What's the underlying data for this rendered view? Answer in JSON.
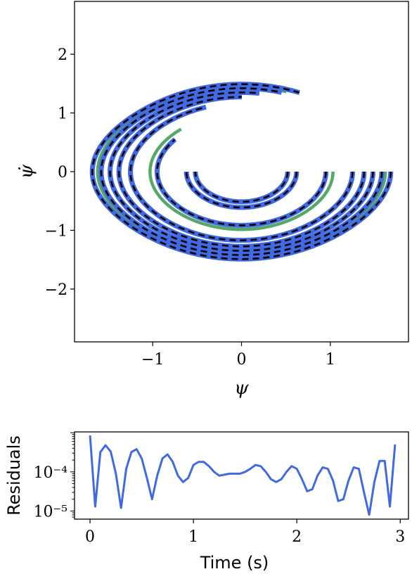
{
  "chart_data": [
    {
      "type": "line",
      "title": "",
      "xlabel": "ψ",
      "ylabel": "ψ̇",
      "xlim": [
        -1.88,
        1.88
      ],
      "ylim": [
        -2.9,
        2.9
      ],
      "xticks": [
        -1,
        0,
        1
      ],
      "yticks": [
        -2,
        -1,
        0,
        1,
        2
      ],
      "grid": false,
      "legend": "none",
      "colors": {
        "learned": "#4169e1",
        "reference": "#000000",
        "training": "#55a868"
      },
      "trajectories": [
        {
          "start_angle": 0.52,
          "end_psi": -0.55
        },
        {
          "start_angle": 0.62,
          "end_psi": -0.62
        },
        {
          "start_angle": 0.95,
          "end_psi": -0.75
        },
        {
          "start_angle": 1.25,
          "end_psi": -0.4
        },
        {
          "start_angle": 1.38,
          "end_psi": 0.0
        },
        {
          "start_angle": 1.48,
          "end_psi": 0.2
        },
        {
          "start_angle": 1.58,
          "end_psi": 0.45
        },
        {
          "start_angle": 1.68,
          "end_psi": 0.65
        }
      ],
      "training_trajectories": [
        {
          "start_angle": 1.03,
          "end_psi": -0.68
        },
        {
          "start_angle": 1.26,
          "end_psi": -0.45
        },
        {
          "start_angle": 1.62,
          "end_psi": 0.5
        }
      ]
    },
    {
      "type": "line",
      "title": "",
      "xlabel": "Time (s)",
      "ylabel": "Residuals",
      "xlim": [
        -0.15,
        3.08
      ],
      "ylim": [
        6.2e-06,
        0.00105
      ],
      "yscale": "log",
      "xticks": [
        0,
        1,
        2,
        3
      ],
      "yticks": [
        {
          "value": 0.0001,
          "label": "10⁻⁴"
        },
        {
          "value": 1e-05,
          "label": "10⁻⁵"
        }
      ],
      "grid": false,
      "series": [
        {
          "color": "#4169e1",
          "x": [
            0,
            0.05,
            0.1,
            0.15,
            0.2,
            0.25,
            0.3,
            0.35,
            0.4,
            0.45,
            0.5,
            0.55,
            0.6,
            0.65,
            0.7,
            0.75,
            0.8,
            0.85,
            0.9,
            0.95,
            1.0,
            1.05,
            1.1,
            1.15,
            1.2,
            1.25,
            1.3,
            1.35,
            1.4,
            1.45,
            1.5,
            1.55,
            1.6,
            1.65,
            1.7,
            1.75,
            1.8,
            1.85,
            1.9,
            1.95,
            2.0,
            2.05,
            2.1,
            2.15,
            2.2,
            2.25,
            2.3,
            2.35,
            2.4,
            2.45,
            2.5,
            2.55,
            2.6,
            2.65,
            2.7,
            2.75,
            2.8,
            2.85,
            2.9,
            2.95
          ],
          "y": [
            0.00085,
            1.3e-05,
            0.00032,
            0.00048,
            0.00033,
            9e-05,
            1.2e-05,
            0.00012,
            0.00032,
            0.00038,
            0.00022,
            7e-05,
            2e-05,
            8e-05,
            0.00022,
            0.00028,
            0.00018,
            8e-05,
            5.5e-05,
            7e-05,
            0.00015,
            0.00018,
            0.00018,
            0.00014,
            0.0001,
            8e-05,
            8.5e-05,
            9e-05,
            9e-05,
            9e-05,
            0.0001,
            0.00012,
            0.00015,
            0.00014,
            0.0001,
            6.5e-05,
            5.5e-05,
            6.5e-05,
            0.0001,
            0.00014,
            0.00012,
            6.5e-05,
            3.2e-05,
            3.6e-05,
            8e-05,
            0.00013,
            0.00012,
            6e-05,
            1.8e-05,
            2e-05,
            6e-05,
            0.00013,
            0.00012,
            3e-05,
            8e-06,
            5.5e-05,
            0.00019,
            0.00019,
            1.3e-05,
            0.0005
          ]
        }
      ]
    }
  ]
}
